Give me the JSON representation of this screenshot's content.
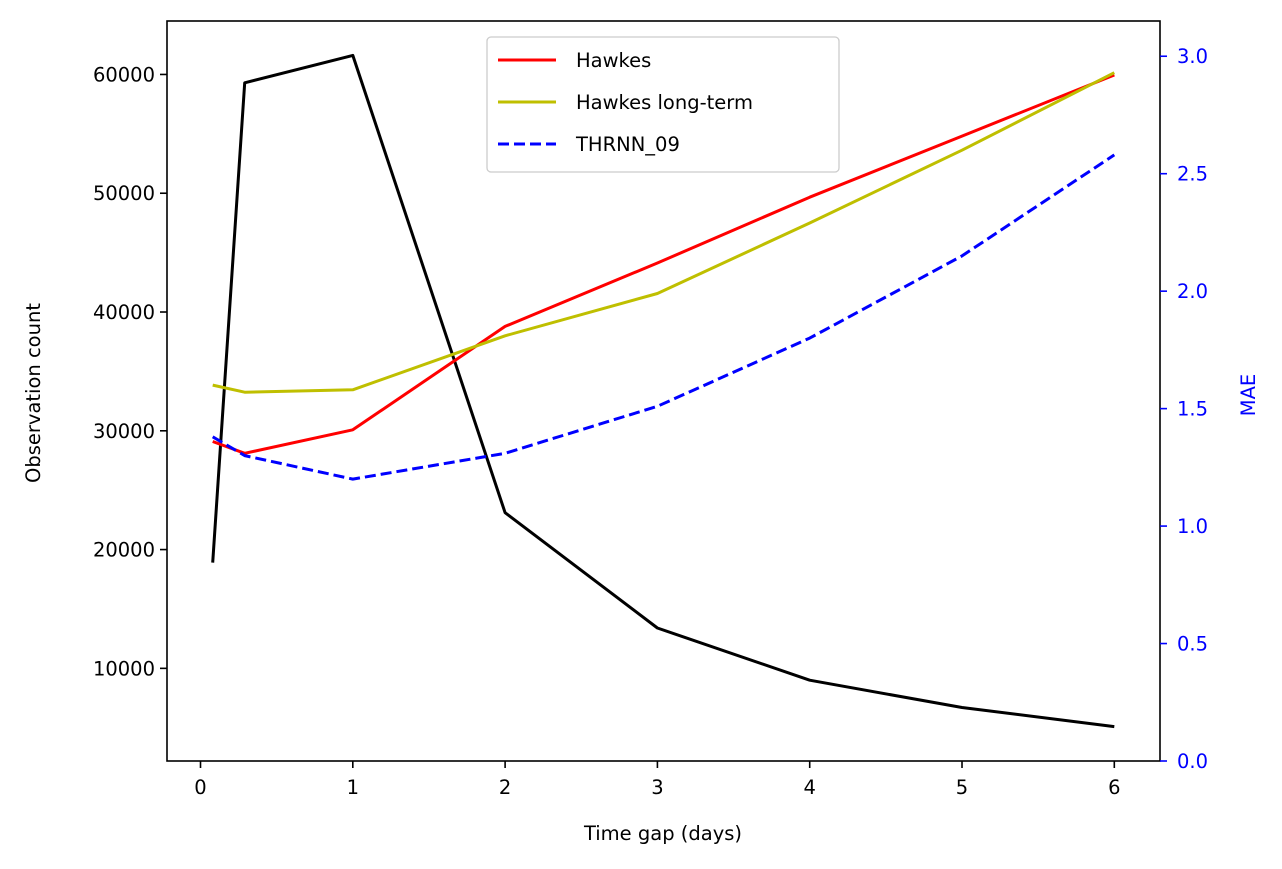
{
  "chart_data": {
    "type": "line",
    "xlabel": "Time gap (days)",
    "ylabel_left": "Observation count",
    "ylabel_right": "MAE",
    "xlim": [
      -0.22,
      6.3
    ],
    "ylim_left": [
      2200,
      64500
    ],
    "ylim_right": [
      0.0,
      3.15
    ],
    "x_ticks": [
      0,
      1,
      2,
      3,
      4,
      5,
      6
    ],
    "y_ticks_left": [
      10000,
      20000,
      30000,
      40000,
      50000,
      60000
    ],
    "y_ticks_right": [
      0.0,
      0.5,
      1.0,
      1.5,
      2.0,
      2.5,
      3.0
    ],
    "grid": false,
    "legend_position": "top-center",
    "colors": {
      "right_axis": "#0000ff"
    },
    "series": [
      {
        "name": "",
        "axis": "left",
        "color": "#000000",
        "dash": "solid",
        "x": [
          0.08,
          0.29,
          1,
          2,
          3,
          4,
          5,
          6
        ],
        "y": [
          18900,
          59300,
          61600,
          23100,
          13400,
          9000,
          6700,
          5100
        ]
      },
      {
        "name": "Hawkes",
        "axis": "right",
        "color": "#ff0000",
        "dash": "solid",
        "x": [
          0.08,
          0.29,
          1,
          2,
          3,
          4,
          5,
          6
        ],
        "y": [
          1.36,
          1.31,
          1.41,
          1.85,
          2.12,
          2.4,
          2.66,
          2.92
        ]
      },
      {
        "name": "Hawkes long-term",
        "axis": "right",
        "color": "#bfbf00",
        "dash": "solid",
        "x": [
          0.08,
          0.29,
          1,
          2,
          3,
          4,
          5,
          6
        ],
        "y": [
          1.6,
          1.57,
          1.58,
          1.81,
          1.99,
          2.29,
          2.6,
          2.93
        ]
      },
      {
        "name": "THRNN_09",
        "axis": "right",
        "color": "#0000ff",
        "dash": "dashed",
        "x": [
          0.08,
          0.29,
          1,
          2,
          3,
          4,
          5,
          6
        ],
        "y": [
          1.38,
          1.3,
          1.2,
          1.31,
          1.51,
          1.8,
          2.15,
          2.58
        ]
      }
    ]
  }
}
